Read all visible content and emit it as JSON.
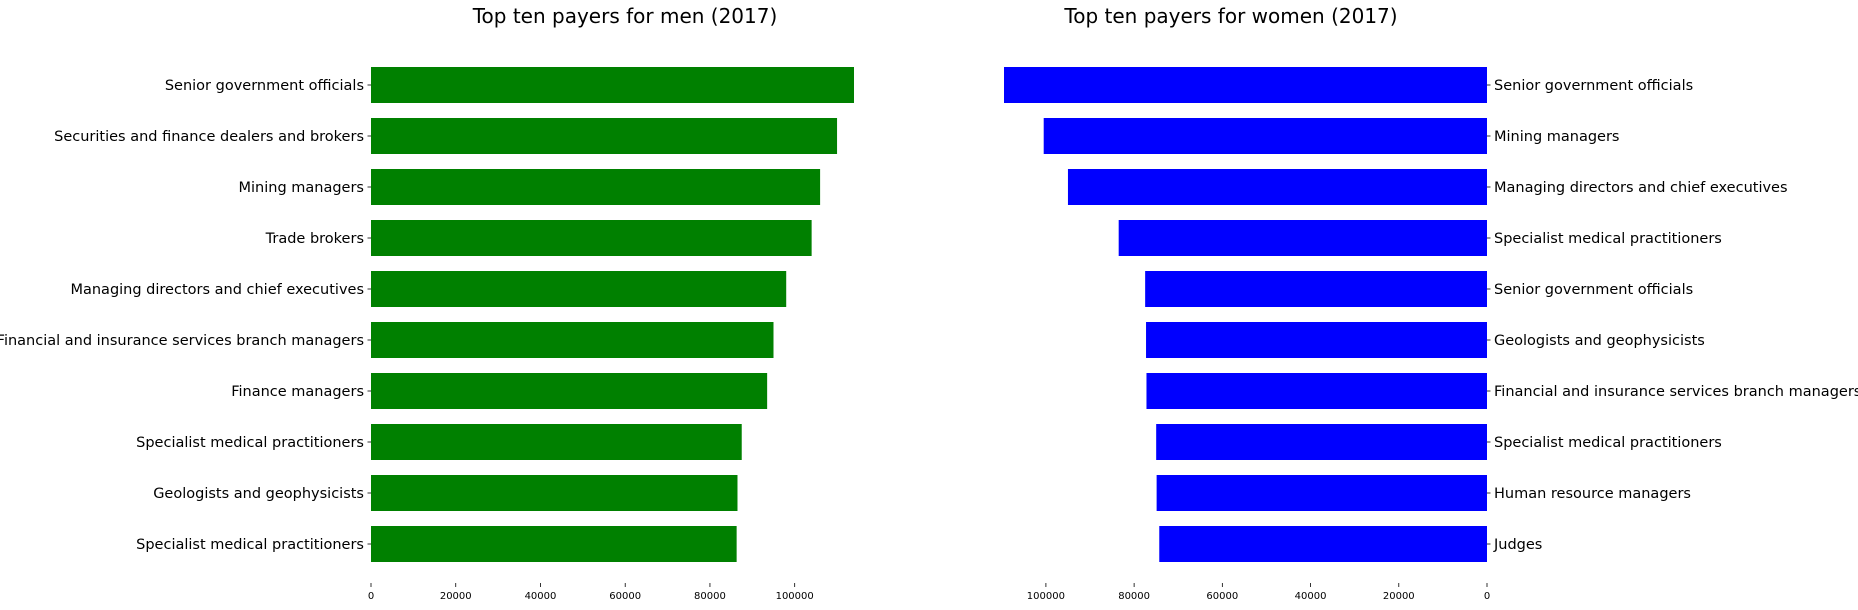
{
  "chart_data": [
    {
      "type": "bar",
      "orientation": "horizontal",
      "title": "Top ten payers for men (2017)",
      "color": "#008000",
      "categories": [
        "Senior government officials",
        "Securities and finance dealers and brokers",
        "Mining managers",
        "Trade brokers",
        "Managing directors and chief executives",
        "Financial and insurance services branch managers",
        "Finance managers",
        "Specialist medical practitioners",
        "Geologists and geophysicists",
        "Specialist medical practitioners"
      ],
      "values": [
        114000,
        110000,
        106000,
        104000,
        98000,
        95000,
        93500,
        87500,
        86500,
        86300
      ],
      "xlim": [
        0,
        115000
      ],
      "xticks": [
        0,
        20000,
        40000,
        60000,
        80000,
        100000
      ],
      "xticklabels": [
        "0",
        "20000",
        "40000",
        "60000",
        "80000",
        "100000"
      ],
      "xaxis_direction": "normal",
      "labels_side": "left",
      "grid": false
    },
    {
      "type": "bar",
      "orientation": "horizontal",
      "title": "Top ten payers for women (2017)",
      "color": "#0000ff",
      "categories": [
        "Senior government officials",
        "Mining managers",
        "Managing directors and chief executives",
        "Specialist medical practitioners",
        "Senior government officials",
        "Geologists and geophysicists",
        "Financial and insurance services branch managers",
        "Specialist medical practitioners",
        "Human resource managers",
        "Judges"
      ],
      "values": [
        109500,
        100500,
        95000,
        83500,
        77500,
        77300,
        77200,
        75000,
        74900,
        74300
      ],
      "xlim": [
        0,
        110000
      ],
      "xticks": [
        100000,
        80000,
        60000,
        40000,
        20000,
        0
      ],
      "xticklabels": [
        "100000",
        "80000",
        "60000",
        "40000",
        "20000",
        "0"
      ],
      "xaxis_direction": "inverted",
      "labels_side": "right",
      "grid": false
    }
  ]
}
